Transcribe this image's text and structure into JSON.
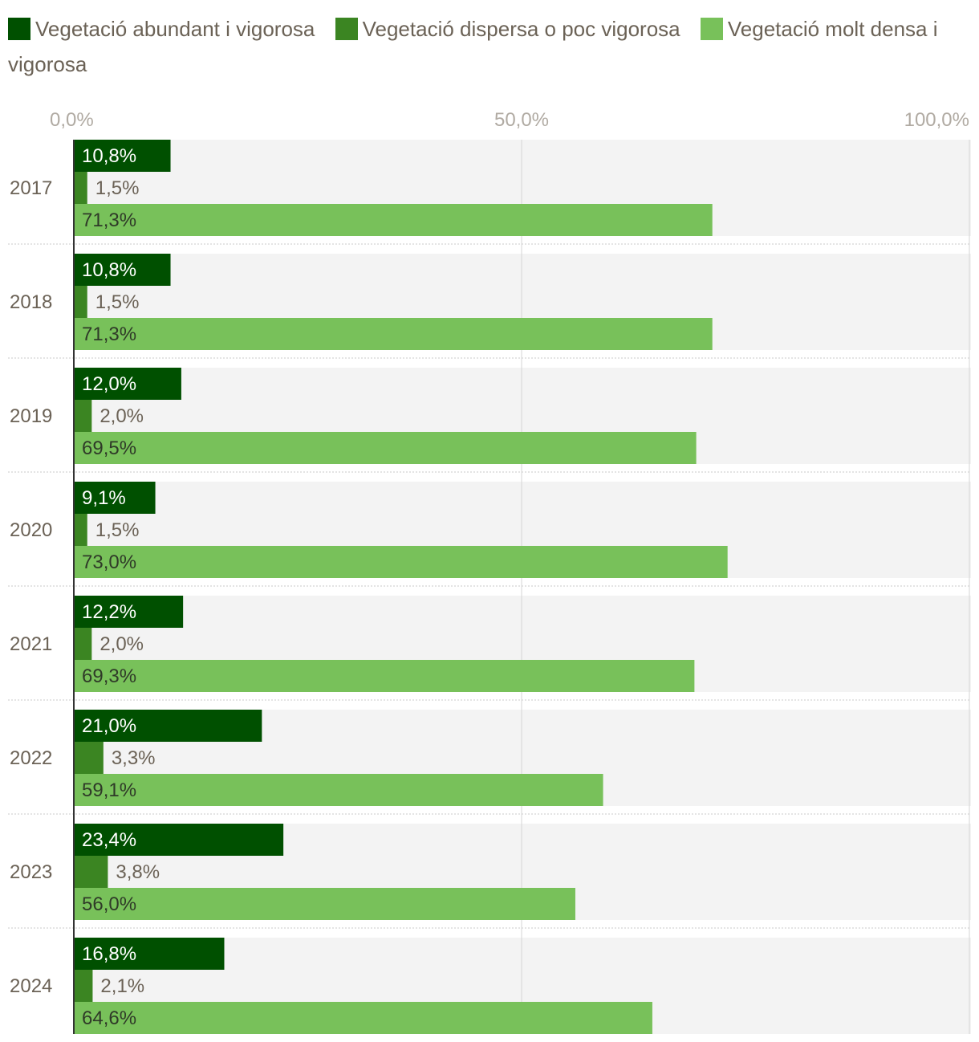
{
  "chart_data": {
    "type": "bar",
    "orientation": "horizontal",
    "title": "",
    "xlabel": "",
    "ylabel": "",
    "xlim": [
      0,
      100
    ],
    "x_ticks": [
      "0,0%",
      "50,0%",
      "100,0%"
    ],
    "x_tick_values": [
      0,
      50,
      100
    ],
    "legend_position": "top",
    "categories": [
      "2017",
      "2018",
      "2019",
      "2020",
      "2021",
      "2022",
      "2023",
      "2024"
    ],
    "series": [
      {
        "name": "Vegetació abundant i vigorosa",
        "color": "#005000",
        "label_color": "#ffffff",
        "values": [
          10.8,
          10.8,
          12.0,
          9.1,
          12.2,
          21.0,
          23.4,
          16.8
        ],
        "labels": [
          "10,8%",
          "10,8%",
          "12,0%",
          "9,1%",
          "12,2%",
          "21,0%",
          "23,4%",
          "16,8%"
        ]
      },
      {
        "name": "Vegetació dispersa o poc vigorosa",
        "color": "#3b8522",
        "label_color": "#6b6256",
        "values": [
          1.5,
          1.5,
          2.0,
          1.5,
          2.0,
          3.3,
          3.8,
          2.1
        ],
        "labels": [
          "1,5%",
          "1,5%",
          "2,0%",
          "1,5%",
          "2,0%",
          "3,3%",
          "3,8%",
          "2,1%"
        ]
      },
      {
        "name": "Vegetació molt densa i vigorosa",
        "color": "#78c15a",
        "label_color": "#2f3a28",
        "values": [
          71.3,
          71.3,
          69.5,
          73.0,
          69.3,
          59.1,
          56.0,
          64.6
        ],
        "labels": [
          "71,3%",
          "71,3%",
          "69,5%",
          "73,0%",
          "69,3%",
          "59,1%",
          "56,0%",
          "64,6%"
        ]
      }
    ]
  }
}
